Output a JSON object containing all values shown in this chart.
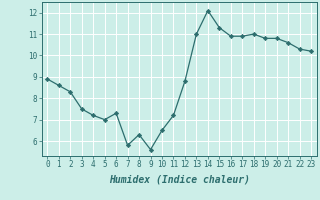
{
  "x": [
    0,
    1,
    2,
    3,
    4,
    5,
    6,
    7,
    8,
    9,
    10,
    11,
    12,
    13,
    14,
    15,
    16,
    17,
    18,
    19,
    20,
    21,
    22,
    23
  ],
  "y": [
    8.9,
    8.6,
    8.3,
    7.5,
    7.2,
    7.0,
    7.3,
    5.8,
    6.3,
    5.6,
    6.5,
    7.2,
    8.8,
    11.0,
    12.1,
    11.3,
    10.9,
    10.9,
    11.0,
    10.8,
    10.8,
    10.6,
    10.3,
    10.2
  ],
  "line_color": "#2d6e6e",
  "marker": "D",
  "marker_size": 2.2,
  "bg_color": "#cceee8",
  "grid_color": "#ffffff",
  "xlabel": "Humidex (Indice chaleur)",
  "ylim": [
    5.3,
    12.5
  ],
  "xlim": [
    -0.5,
    23.5
  ],
  "yticks": [
    6,
    7,
    8,
    9,
    10,
    11,
    12
  ],
  "xticks": [
    0,
    1,
    2,
    3,
    4,
    5,
    6,
    7,
    8,
    9,
    10,
    11,
    12,
    13,
    14,
    15,
    16,
    17,
    18,
    19,
    20,
    21,
    22,
    23
  ],
  "tick_color": "#2d6e6e",
  "label_color": "#2d6e6e",
  "spine_color": "#2d6e6e",
  "tick_fontsize": 5.5,
  "xlabel_fontsize": 7.0,
  "linewidth": 0.9
}
